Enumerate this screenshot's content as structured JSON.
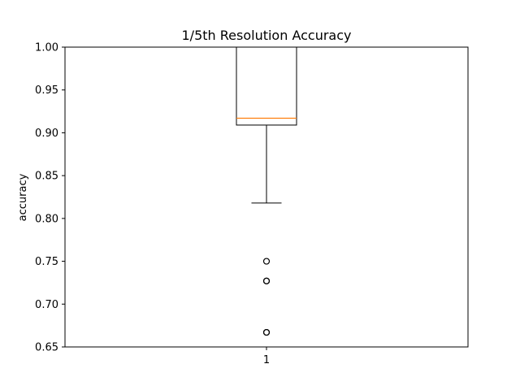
{
  "chart_data": {
    "type": "box",
    "title": "1/5th Resolution Accuracy",
    "xlabel": "",
    "ylabel": "accuracy",
    "ylim": [
      0.65,
      1.0
    ],
    "y_ticks": [
      "0.65",
      "0.70",
      "0.75",
      "0.80",
      "0.85",
      "0.90",
      "0.95",
      "1.00"
    ],
    "categories": [
      "1"
    ],
    "boxes": [
      {
        "category": "1",
        "whisker_low": 0.818,
        "q1": 0.909,
        "median": 0.917,
        "q3": 1.0,
        "whisker_high": 1.0,
        "outliers": [
          0.75,
          0.727,
          0.727,
          0.667,
          0.667
        ]
      }
    ],
    "grid": false,
    "colors": {
      "box": "#000000",
      "median": "#ff7f0e"
    }
  }
}
